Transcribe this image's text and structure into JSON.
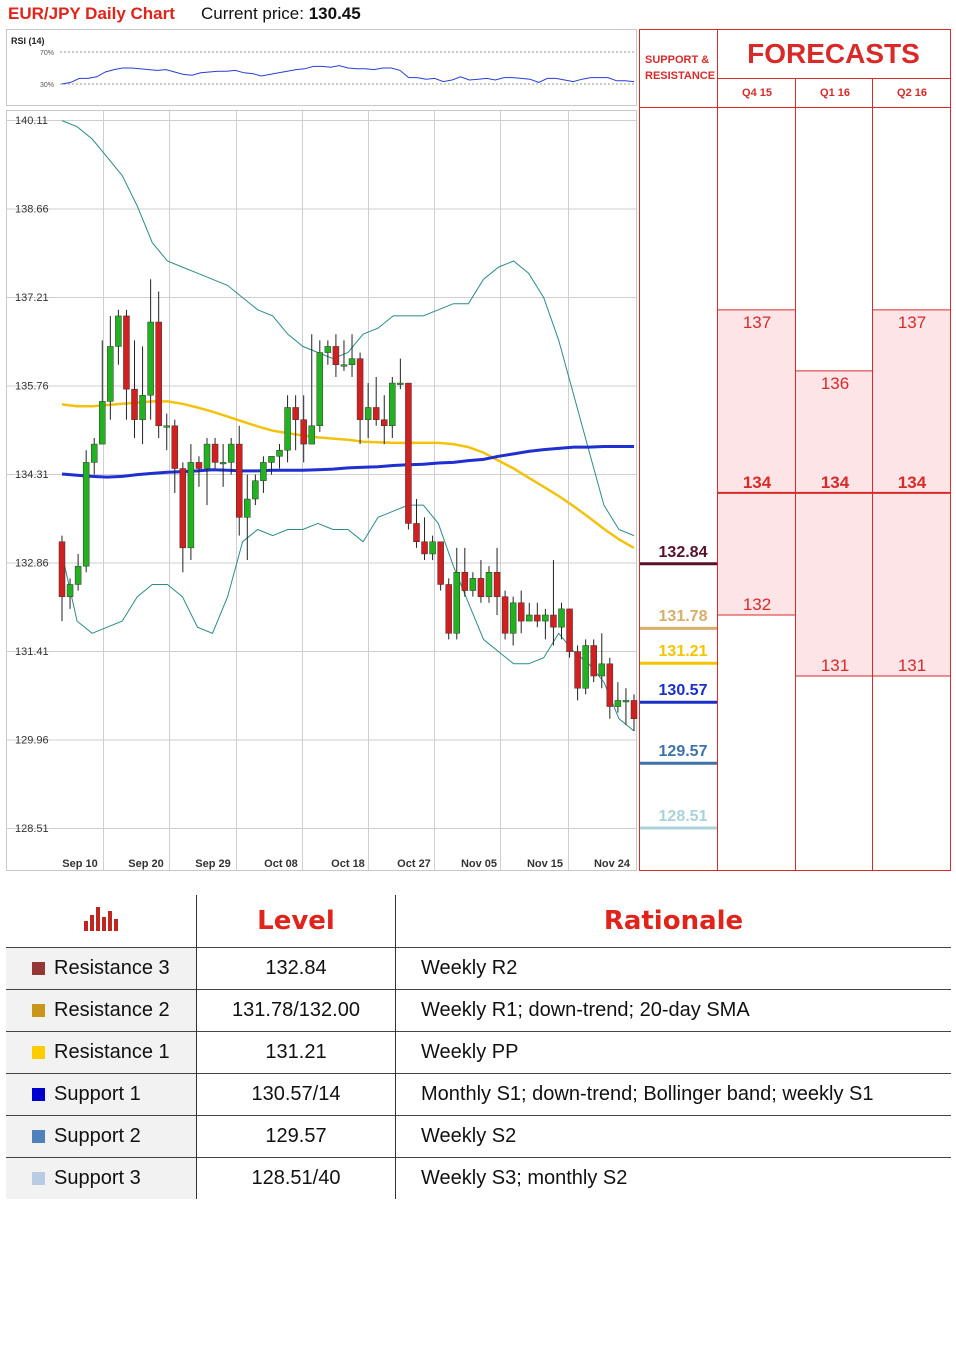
{
  "header": {
    "title": "EUR/JPY Daily Chart",
    "price_label": "Current price:",
    "price_value": "130.45"
  },
  "rsi": {
    "label": "RSI (14)",
    "levels": [
      "70%",
      "30%"
    ],
    "values": [
      30,
      32,
      37,
      37,
      39,
      45,
      48,
      50,
      50,
      49,
      48,
      47,
      48,
      45,
      42,
      41,
      44,
      45,
      46,
      46,
      47,
      44,
      43,
      40,
      42,
      44,
      46,
      48,
      49,
      52,
      52,
      51,
      53,
      50,
      49,
      49,
      48,
      50,
      50,
      47,
      38,
      38,
      36,
      37,
      33,
      35,
      39,
      35,
      36,
      37,
      35,
      38,
      38,
      37,
      36,
      32,
      37,
      37,
      35,
      33,
      36,
      38,
      38,
      38,
      34,
      34,
      33
    ]
  },
  "chart_data": {
    "type": "candlestick",
    "x_ticks": [
      "Sep 10",
      "Sep 20",
      "Sep 29",
      "Oct 08",
      "Oct 18",
      "Oct 27",
      "Nov 05",
      "Nov 15",
      "Nov 24"
    ],
    "y_ticks": [
      "140.11",
      "138.66",
      "137.21",
      "135.76",
      "134.31",
      "132.86",
      "131.41",
      "129.96",
      "128.51"
    ],
    "ylim": [
      127.9,
      140.21
    ],
    "candles": [
      {
        "o": 133.2,
        "h": 133.3,
        "l": 131.9,
        "c": 132.3
      },
      {
        "o": 132.3,
        "h": 132.6,
        "l": 132.1,
        "c": 132.5
      },
      {
        "o": 132.5,
        "h": 133.0,
        "l": 132.4,
        "c": 132.8
      },
      {
        "o": 132.8,
        "h": 134.7,
        "l": 132.7,
        "c": 134.5
      },
      {
        "o": 134.5,
        "h": 134.9,
        "l": 134.3,
        "c": 134.8
      },
      {
        "o": 134.8,
        "h": 136.5,
        "l": 134.8,
        "c": 135.5
      },
      {
        "o": 135.5,
        "h": 136.9,
        "l": 135.2,
        "c": 136.4
      },
      {
        "o": 136.4,
        "h": 137.0,
        "l": 136.1,
        "c": 136.9
      },
      {
        "o": 136.9,
        "h": 137.0,
        "l": 135.2,
        "c": 135.7
      },
      {
        "o": 135.7,
        "h": 136.5,
        "l": 134.9,
        "c": 135.2
      },
      {
        "o": 135.2,
        "h": 136.4,
        "l": 134.8,
        "c": 135.6
      },
      {
        "o": 135.6,
        "h": 137.5,
        "l": 135.2,
        "c": 136.8
      },
      {
        "o": 136.8,
        "h": 137.3,
        "l": 134.9,
        "c": 135.1
      },
      {
        "o": 135.1,
        "h": 135.3,
        "l": 134.7,
        "c": 135.1
      },
      {
        "o": 135.1,
        "h": 135.2,
        "l": 134.0,
        "c": 134.4
      },
      {
        "o": 134.4,
        "h": 134.5,
        "l": 132.7,
        "c": 133.1
      },
      {
        "o": 133.1,
        "h": 134.8,
        "l": 132.9,
        "c": 134.5
      },
      {
        "o": 134.5,
        "h": 134.6,
        "l": 134.1,
        "c": 134.4
      },
      {
        "o": 134.4,
        "h": 134.9,
        "l": 133.8,
        "c": 134.8
      },
      {
        "o": 134.8,
        "h": 134.9,
        "l": 134.4,
        "c": 134.5
      },
      {
        "o": 134.5,
        "h": 134.8,
        "l": 134.1,
        "c": 134.5
      },
      {
        "o": 134.5,
        "h": 134.9,
        "l": 134.3,
        "c": 134.8
      },
      {
        "o": 134.8,
        "h": 135.1,
        "l": 133.3,
        "c": 133.6
      },
      {
        "o": 133.6,
        "h": 134.3,
        "l": 132.9,
        "c": 133.9
      },
      {
        "o": 133.9,
        "h": 134.3,
        "l": 133.8,
        "c": 134.2
      },
      {
        "o": 134.2,
        "h": 134.6,
        "l": 134.0,
        "c": 134.5
      },
      {
        "o": 134.5,
        "h": 134.6,
        "l": 134.3,
        "c": 134.6
      },
      {
        "o": 134.6,
        "h": 134.8,
        "l": 134.4,
        "c": 134.7
      },
      {
        "o": 134.7,
        "h": 135.6,
        "l": 134.5,
        "c": 135.4
      },
      {
        "o": 135.4,
        "h": 135.6,
        "l": 134.7,
        "c": 135.2
      },
      {
        "o": 135.2,
        "h": 135.6,
        "l": 134.5,
        "c": 134.8
      },
      {
        "o": 134.8,
        "h": 136.6,
        "l": 134.8,
        "c": 135.1
      },
      {
        "o": 135.1,
        "h": 136.5,
        "l": 135.0,
        "c": 136.3
      },
      {
        "o": 136.3,
        "h": 136.5,
        "l": 136.1,
        "c": 136.4
      },
      {
        "o": 136.4,
        "h": 136.6,
        "l": 135.9,
        "c": 136.1
      },
      {
        "o": 136.1,
        "h": 136.5,
        "l": 136.0,
        "c": 136.1
      },
      {
        "o": 136.1,
        "h": 136.6,
        "l": 135.9,
        "c": 136.2
      },
      {
        "o": 136.2,
        "h": 136.3,
        "l": 134.8,
        "c": 135.2
      },
      {
        "o": 135.2,
        "h": 135.8,
        "l": 134.9,
        "c": 135.4
      },
      {
        "o": 135.4,
        "h": 135.9,
        "l": 135.1,
        "c": 135.2
      },
      {
        "o": 135.2,
        "h": 135.6,
        "l": 134.8,
        "c": 135.1
      },
      {
        "o": 135.1,
        "h": 135.9,
        "l": 134.9,
        "c": 135.8
      },
      {
        "o": 135.8,
        "h": 136.2,
        "l": 135.7,
        "c": 135.8
      },
      {
        "o": 135.8,
        "h": 135.8,
        "l": 133.4,
        "c": 133.5
      },
      {
        "o": 133.5,
        "h": 133.9,
        "l": 133.1,
        "c": 133.2
      },
      {
        "o": 133.2,
        "h": 133.6,
        "l": 132.9,
        "c": 133.0
      },
      {
        "o": 133.0,
        "h": 133.3,
        "l": 132.9,
        "c": 133.2
      },
      {
        "o": 133.2,
        "h": 133.2,
        "l": 132.4,
        "c": 132.5
      },
      {
        "o": 132.5,
        "h": 132.6,
        "l": 131.6,
        "c": 131.7
      },
      {
        "o": 131.7,
        "h": 133.1,
        "l": 131.6,
        "c": 132.7
      },
      {
        "o": 132.7,
        "h": 133.1,
        "l": 132.3,
        "c": 132.4
      },
      {
        "o": 132.4,
        "h": 132.7,
        "l": 132.3,
        "c": 132.6
      },
      {
        "o": 132.6,
        "h": 132.9,
        "l": 132.2,
        "c": 132.3
      },
      {
        "o": 132.3,
        "h": 132.8,
        "l": 132.2,
        "c": 132.7
      },
      {
        "o": 132.7,
        "h": 133.1,
        "l": 132.0,
        "c": 132.3
      },
      {
        "o": 132.3,
        "h": 132.4,
        "l": 131.6,
        "c": 131.7
      },
      {
        "o": 131.7,
        "h": 132.3,
        "l": 131.5,
        "c": 132.2
      },
      {
        "o": 132.2,
        "h": 132.4,
        "l": 131.7,
        "c": 131.9
      },
      {
        "o": 131.9,
        "h": 132.2,
        "l": 131.9,
        "c": 132.0
      },
      {
        "o": 132.0,
        "h": 132.2,
        "l": 131.8,
        "c": 131.9
      },
      {
        "o": 131.9,
        "h": 132.1,
        "l": 131.6,
        "c": 132.0
      },
      {
        "o": 132.0,
        "h": 132.9,
        "l": 131.5,
        "c": 131.8
      },
      {
        "o": 131.8,
        "h": 132.2,
        "l": 131.6,
        "c": 132.1
      },
      {
        "o": 132.1,
        "h": 132.1,
        "l": 131.3,
        "c": 131.4
      },
      {
        "o": 131.4,
        "h": 131.5,
        "l": 130.6,
        "c": 130.8
      },
      {
        "o": 130.8,
        "h": 131.6,
        "l": 130.7,
        "c": 131.5
      },
      {
        "o": 131.5,
        "h": 131.6,
        "l": 130.9,
        "c": 131.0
      },
      {
        "o": 131.0,
        "h": 131.7,
        "l": 130.8,
        "c": 131.2
      },
      {
        "o": 131.2,
        "h": 131.3,
        "l": 130.3,
        "c": 130.5
      },
      {
        "o": 130.5,
        "h": 130.9,
        "l": 130.4,
        "c": 130.6
      },
      {
        "o": 130.6,
        "h": 130.8,
        "l": 130.2,
        "c": 130.6
      },
      {
        "o": 130.6,
        "h": 130.7,
        "l": 130.1,
        "c": 130.3
      }
    ],
    "sma20": [
      135.45,
      135.42,
      135.42,
      135.44,
      135.46,
      135.48,
      135.5,
      135.5,
      135.46,
      135.4,
      135.33,
      135.25,
      135.17,
      135.09,
      135.02,
      134.98,
      134.94,
      134.91,
      134.89,
      134.87,
      134.84,
      134.83,
      134.82,
      134.82,
      134.82,
      134.82,
      134.8,
      134.75,
      134.66,
      134.53,
      134.4,
      134.25,
      134.1,
      133.95,
      133.78,
      133.6,
      133.41,
      133.24,
      133.1
    ],
    "sma100": [
      134.31,
      134.29,
      134.27,
      134.26,
      134.27,
      134.3,
      134.32,
      134.34,
      134.35,
      134.36,
      134.38,
      134.37,
      134.36,
      134.36,
      134.37,
      134.37,
      134.37,
      134.38,
      134.39,
      134.41,
      134.42,
      134.43,
      134.45,
      134.46,
      134.47,
      134.49,
      134.5,
      134.53,
      134.55,
      134.6,
      134.64,
      134.68,
      134.71,
      134.73,
      134.75,
      134.75,
      134.76,
      134.76,
      134.76
    ],
    "bb_upper": [
      140.1,
      140.0,
      139.8,
      139.5,
      139.2,
      138.7,
      138.1,
      137.8,
      137.7,
      137.6,
      137.5,
      137.4,
      137.2,
      137.0,
      136.9,
      136.6,
      136.4,
      136.3,
      136.2,
      136.3,
      136.6,
      136.7,
      136.9,
      136.9,
      136.9,
      137.0,
      137.1,
      137.1,
      137.5,
      137.7,
      137.8,
      137.6,
      137.2,
      136.5,
      135.6,
      134.7,
      133.8,
      133.4,
      133.3
    ],
    "bb_lower": [
      133.0,
      131.9,
      131.7,
      131.8,
      131.9,
      132.3,
      132.5,
      132.5,
      132.3,
      131.8,
      131.7,
      132.3,
      133.2,
      133.4,
      133.3,
      133.4,
      133.4,
      133.5,
      133.4,
      133.4,
      133.2,
      133.6,
      133.7,
      133.8,
      133.8,
      133.5,
      132.8,
      132.2,
      131.6,
      131.4,
      131.2,
      131.2,
      131.3,
      131.7,
      131.4,
      131.2,
      130.9,
      130.3,
      130.1
    ],
    "support_resistance": [
      {
        "name": "Resistance 3",
        "value": 132.84,
        "label": "132.84",
        "color": "#5a0f2b"
      },
      {
        "name": "Resistance 2",
        "value": 131.78,
        "label": "131.78",
        "color": "#d9ad6a"
      },
      {
        "name": "Resistance 1",
        "value": 131.21,
        "label": "131.21",
        "color": "#f5c400"
      },
      {
        "name": "Support 1",
        "value": 130.57,
        "label": "130.57",
        "color": "#1a2ec9"
      },
      {
        "name": "Support 2",
        "value": 129.57,
        "label": "129.57",
        "color": "#3f72a8"
      },
      {
        "name": "Support 3",
        "value": 128.51,
        "label": "128.51",
        "color": "#a9d3d8"
      }
    ]
  },
  "forecasts": {
    "sr_header": "SUPPORT & RESISTANCE",
    "title": "FORECASTS",
    "quarters": [
      {
        "label": "Q4 15",
        "high": "137",
        "mid": "134",
        "low": "132",
        "high_v": 137,
        "mid_v": 134,
        "low_v": 132
      },
      {
        "label": "Q1 16",
        "high": "136",
        "mid": "134",
        "low": "131",
        "high_v": 136,
        "mid_v": 134,
        "low_v": 131
      },
      {
        "label": "Q2 16",
        "high": "137",
        "mid": "134",
        "low": "131",
        "high_v": 137,
        "mid_v": 134,
        "low_v": 131
      }
    ]
  },
  "table": {
    "headers": {
      "level": "Level",
      "rationale": "Rationale"
    },
    "rows": [
      {
        "name": "Resistance 3",
        "level": "132.84",
        "rationale": "Weekly R2",
        "color": "#953735"
      },
      {
        "name": "Resistance 2",
        "level": "131.78/132.00",
        "rationale": "Weekly R1; down-trend; 20-day SMA",
        "color": "#c9961a"
      },
      {
        "name": "Resistance 1",
        "level": "131.21",
        "rationale": "Weekly PP",
        "color": "#ffcc00"
      },
      {
        "name": "Support 1",
        "level": "130.57/14",
        "rationale": "Monthly S1; down-trend; Bollinger band; weekly S1",
        "color": "#0000cc"
      },
      {
        "name": "Support 2",
        "level": "129.57",
        "rationale": "Weekly S2",
        "color": "#4f81bd"
      },
      {
        "name": "Support 3",
        "level": "128.51/40",
        "rationale": "Weekly S3; monthly S2",
        "color": "#b8cce4"
      }
    ]
  },
  "colors": {
    "accent": "#e0241b",
    "bull": "#22b11f",
    "bear": "#d21f1f",
    "bollinger": "#2b8c86",
    "sma20": "#f4c20d",
    "sma100": "#1f2fd0",
    "rsi": "#2a3dd6"
  }
}
